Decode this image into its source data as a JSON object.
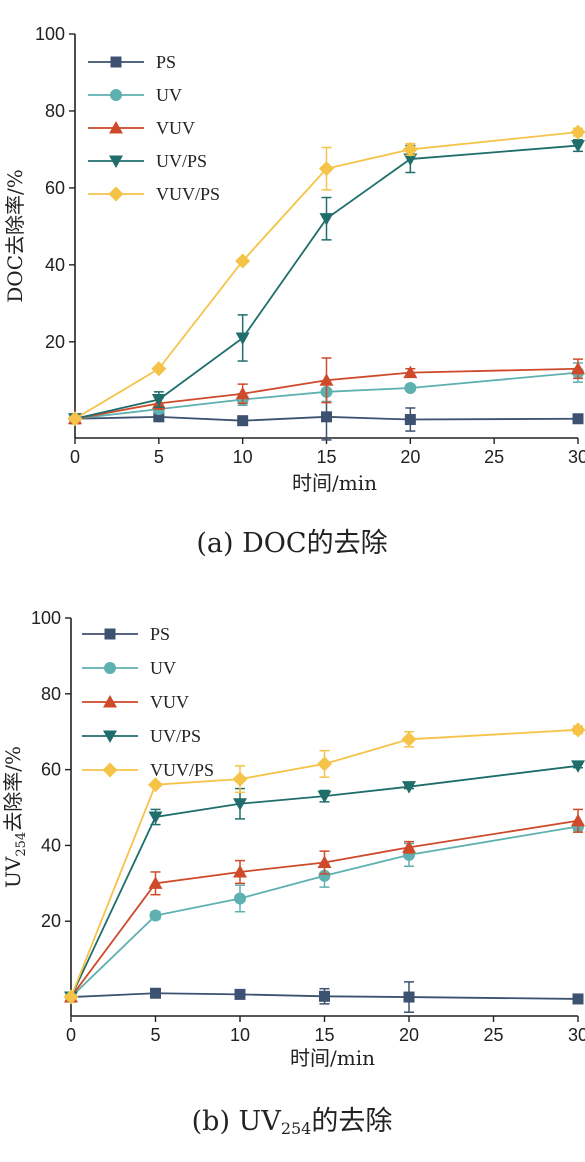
{
  "chart_data": [
    {
      "type": "line",
      "caption": "(a) DOC的去除",
      "xlabel": "时间/min",
      "ylabel": "DOC去除率/%",
      "xlim": [
        0,
        30
      ],
      "ylim": [
        -5,
        100
      ],
      "x_ticks": [
        0,
        5,
        10,
        15,
        20,
        25,
        30
      ],
      "y_ticks": [
        20,
        40,
        60,
        80,
        100
      ],
      "legend_position": "top-left",
      "x": [
        0,
        5,
        10,
        15,
        20,
        30
      ],
      "series": [
        {
          "name": "PS",
          "color": "#3d5170",
          "marker": "square",
          "values": [
            0,
            0.5,
            -0.5,
            0.5,
            -0.2,
            0
          ],
          "errors": [
            0,
            0.5,
            0.5,
            6.0,
            3.0,
            0
          ]
        },
        {
          "name": "UV",
          "color": "#5fb0b0",
          "marker": "circle",
          "values": [
            0,
            2.5,
            5,
            7,
            8,
            12
          ],
          "errors": [
            0,
            1.0,
            1.5,
            2.5,
            0.5,
            2.5
          ]
        },
        {
          "name": "VUV",
          "color": "#cf4a2a",
          "marker": "triangle-up",
          "values": [
            0,
            4,
            6.5,
            10,
            12,
            13
          ],
          "errors": [
            0,
            1.5,
            2.5,
            5.8,
            1.0,
            2.5
          ]
        },
        {
          "name": "UV/PS",
          "color": "#1f6e6c",
          "marker": "triangle-down",
          "values": [
            0,
            5,
            21,
            52,
            67.5,
            71
          ],
          "errors": [
            0,
            2.0,
            6.0,
            5.5,
            3.5,
            1.5
          ]
        },
        {
          "name": "VUV/PS",
          "color": "#f5c348",
          "marker": "diamond",
          "values": [
            0,
            13,
            41,
            65,
            70,
            74.5
          ],
          "errors": [
            0,
            0,
            0,
            5.5,
            1.5,
            1.0
          ]
        }
      ]
    },
    {
      "type": "line",
      "caption": "(b) UV254的去除",
      "xlabel": "时间/min",
      "ylabel": "UV254去除率/%",
      "xlim": [
        0,
        30
      ],
      "ylim": [
        -5,
        100
      ],
      "x_ticks": [
        0,
        5,
        10,
        15,
        20,
        25,
        30
      ],
      "y_ticks": [
        20,
        40,
        60,
        80,
        100
      ],
      "legend_position": "top-left",
      "x": [
        0,
        5,
        10,
        15,
        20,
        30
      ],
      "series": [
        {
          "name": "PS",
          "color": "#3d5170",
          "marker": "square",
          "values": [
            0,
            1,
            0.7,
            0.2,
            0,
            -0.5
          ],
          "errors": [
            0,
            1.0,
            1.0,
            2.0,
            4.0,
            0
          ]
        },
        {
          "name": "UV",
          "color": "#5fb0b0",
          "marker": "circle",
          "values": [
            0,
            21.5,
            26,
            32,
            37.5,
            45
          ],
          "errors": [
            0,
            1.0,
            3.5,
            3.0,
            3.0,
            1.0
          ]
        },
        {
          "name": "VUV",
          "color": "#cf4a2a",
          "marker": "triangle-up",
          "values": [
            0,
            30,
            33,
            35.5,
            39.5,
            46.5
          ],
          "errors": [
            0,
            3.0,
            3.0,
            3.0,
            1.5,
            3.0
          ]
        },
        {
          "name": "UV/PS",
          "color": "#1f6e6c",
          "marker": "triangle-down",
          "values": [
            0,
            47.5,
            51,
            53,
            55.5,
            61
          ],
          "errors": [
            0,
            2.0,
            4.0,
            1.5,
            0.5,
            0.5
          ]
        },
        {
          "name": "VUV/PS",
          "color": "#f5c348",
          "marker": "diamond",
          "values": [
            0,
            56,
            57.5,
            61.5,
            68,
            70.5
          ],
          "errors": [
            0,
            0.5,
            3.5,
            3.5,
            2.0,
            1.0
          ]
        }
      ]
    }
  ]
}
